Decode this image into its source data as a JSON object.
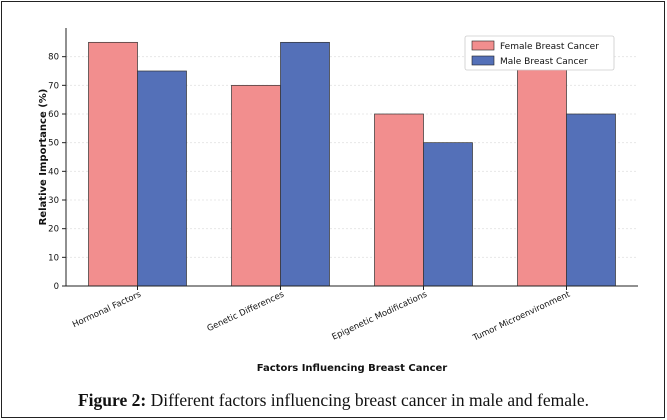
{
  "chart_data": {
    "type": "bar",
    "title": "",
    "xlabel": "Factors Influencing Breast Cancer",
    "ylabel": "Relative Importance (%)",
    "categories": [
      "Hormonal Factors",
      "Genetic Differences",
      "Epigenetic Modifications",
      "Tumor Microenvironment"
    ],
    "series": [
      {
        "name": "Female Breast Cancer",
        "values": [
          85,
          70,
          60,
          80
        ],
        "color": "#f28e8e"
      },
      {
        "name": "Male Breast Cancer",
        "values": [
          75,
          85,
          50,
          60
        ],
        "color": "#5470b8"
      }
    ],
    "ylim": [
      0,
      90
    ],
    "yticks": [
      0,
      10,
      20,
      30,
      40,
      50,
      60,
      70,
      80
    ],
    "grid": true,
    "legend_position": "top-right"
  },
  "caption": {
    "label": "Figure 2:",
    "text": " Different factors influencing breast cancer in male and female."
  }
}
